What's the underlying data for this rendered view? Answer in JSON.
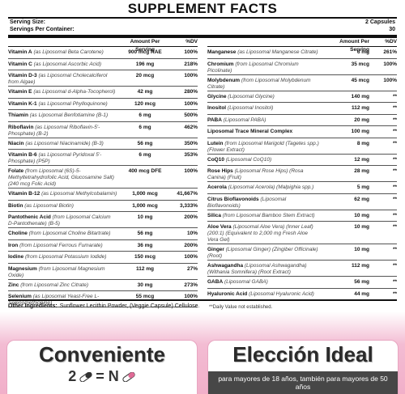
{
  "header": {
    "title": "SUPPLEMENT FACTS",
    "serving_size_label": "Serving Size:",
    "serving_size": "2 Capsules",
    "servings_label": "Servings Per Container:",
    "servings": "30"
  },
  "columns": {
    "amount": "Amount Per Serving",
    "dv": "%DV"
  },
  "left_rows": [
    {
      "name": "Vitamin A",
      "source": "(as Liposomal Beta Carotene)",
      "amount": "900 mcg RAE",
      "dv": "100%"
    },
    {
      "name": "Vitamin C",
      "source": "(as Liposomal Ascorbic Acid)",
      "amount": "196 mg",
      "dv": "218%"
    },
    {
      "name": "Vitamin D-3",
      "source": "(as Liposomal Cholecalciferol from Algae)",
      "amount": "20 mcg",
      "dv": "100%"
    },
    {
      "name": "Vitamin E",
      "source": "(as Liposomal d-Alpha-Tocopherol)",
      "amount": "42 mg",
      "dv": "280%"
    },
    {
      "name": "Vitamin K-1",
      "source": "(as Liposomal Phylloquinone)",
      "amount": "120 mcg",
      "dv": "100%"
    },
    {
      "name": "Thiamin",
      "source": "(as Liposomal Benfotiamine (B-1)",
      "amount": "6 mg",
      "dv": "500%"
    },
    {
      "name": "Riboflavin",
      "source": "(as Liposomal Riboflavin-5'-Phosphate) (B-2)",
      "amount": "6 mg",
      "dv": "462%"
    },
    {
      "name": "Niacin",
      "source": "(as Liposomal Niacinamide) (B-3)",
      "amount": "56 mg",
      "dv": "350%"
    },
    {
      "name": "Vitamin B-6",
      "source": "(as Liposomal Pyridoxal 5'-Phosphate) (P5P)",
      "amount": "6 mg",
      "dv": "353%"
    },
    {
      "name": "Folate",
      "source": "(from Liposomal (6S)-5-Methyltetrahydrofolic Acid, Glucosamine Salt) (240 mcg Folic Acid)",
      "amount": "400 mcg DFE",
      "dv": "100%"
    },
    {
      "name": "Vitamin B-12",
      "source": "(as Liposomal Methylcobalamin)",
      "amount": "1,000 mcg",
      "dv": "41,667%"
    },
    {
      "name": "Biotin",
      "source": "(as Liposomal Biotin)",
      "amount": "1,000 mcg",
      "dv": "3,333%"
    },
    {
      "name": "Pantothenic Acid",
      "source": "(from Liposomal Calcium D-Pantothenate) (B-5)",
      "amount": "10 mg",
      "dv": "200%"
    },
    {
      "name": "Choline",
      "source": "(from Liposomal Choline Bitartrate)",
      "amount": "56 mg",
      "dv": "10%"
    },
    {
      "name": "Iron",
      "source": "(from Liposomal Ferrous Fumarate)",
      "amount": "36 mg",
      "dv": "200%"
    },
    {
      "name": "Iodine",
      "source": "(from Liposomal Potassium Iodide)",
      "amount": "150 mcg",
      "dv": "100%"
    },
    {
      "name": "Magnesium",
      "source": "(from Liposomal Magnesium Oxide)",
      "amount": "112 mg",
      "dv": "27%"
    },
    {
      "name": "Zinc",
      "source": "(from Liposomal Zinc Citrate)",
      "amount": "30 mg",
      "dv": "273%"
    },
    {
      "name": "Selenium",
      "source": "(as Liposomal Yeast-Free L-Selenomethionine)",
      "amount": "55 mcg",
      "dv": "100%"
    }
  ],
  "right_rows": [
    {
      "name": "Manganese",
      "source": "(as Liposomal Manganese Citrate)",
      "amount": "6 mg",
      "dv": "261%"
    },
    {
      "name": "Chromium",
      "source": "(from Liposomal Chromium Picolinate)",
      "amount": "35 mcg",
      "dv": "100%"
    },
    {
      "name": "Molybdenum",
      "source": "(from Liposomal Molybdenum Citrate)",
      "amount": "45 mcg",
      "dv": "100%"
    },
    {
      "name": "Glycine",
      "source": "(Liposomal Glycine)",
      "amount": "140 mg",
      "dv": "**"
    },
    {
      "name": "Inositol",
      "source": "(Liposomal Inositol)",
      "amount": "112 mg",
      "dv": "**"
    },
    {
      "name": "PABA",
      "source": "(Liposomal PABA)",
      "amount": "20 mg",
      "dv": "**"
    },
    {
      "name": "Liposomal Trace Mineral Complex",
      "amount": "100 mg",
      "dv": "**"
    },
    {
      "name": "Lutein",
      "source": "(from Liposomal Marigold (Tagetes spp.) (Flower Extract)",
      "amount": "8 mg",
      "dv": "**"
    },
    {
      "name": "CoQ10",
      "source": "(Liposomal CoQ10)",
      "amount": "12 mg",
      "dv": "**"
    },
    {
      "name": "Rose Hips",
      "source": "(Liposomal Rose Hips) (Rosa Canina) (Fruit)",
      "amount": "28 mg",
      "dv": "**"
    },
    {
      "name": "Acerola",
      "source": "(Liposomal Acerola) (Malpighia spp.)",
      "amount": "5 mg",
      "dv": "**"
    },
    {
      "name": "Citrus Bioflavonoids",
      "source": "(Liposomal Bioflavonoids)",
      "amount": "62 mg",
      "dv": "**"
    },
    {
      "name": "Silica",
      "source": "(from Liposomal Bamboo Stem Extract)",
      "amount": "10 mg",
      "dv": "**"
    },
    {
      "name": "Aloe Vera",
      "source": "(Liposomal Aloe Vera) (Inner Leaf) (200:1) (Equivalent to 2,000 mg Fresh Aloe Vera Gel)",
      "amount": "10 mg",
      "dv": "**"
    },
    {
      "name": "Ginger",
      "source": "(Liposomal Ginger) (Zingiber Officinale) (Root)",
      "amount": "10 mg",
      "dv": "**"
    },
    {
      "name": "Ashwagandha",
      "source": "(Liposomal Ashwagandha) (Withania Somnifera) (Root Extract)",
      "amount": "112 mg",
      "dv": "**"
    },
    {
      "name": "GABA",
      "source": "(Liposomal GABA)",
      "amount": "56 mg",
      "dv": "**"
    },
    {
      "name": "Hyaluronic Acid",
      "source": "(Liposomal Hyaluronic Acid)",
      "amount": "44 mg",
      "dv": "**"
    }
  ],
  "footnote": "**Daily Value not established.",
  "other_ingredients": {
    "label": "Other Ingredients:",
    "text": "Sunflower Lecithin Powder, (Veggie Capsule) Cellulose."
  },
  "banners": [
    {
      "title": "Conveniente",
      "formula_left": "2",
      "formula_right": "= N"
    },
    {
      "title": "Elección Ideal",
      "subtitle": "para mayores de 18 años, también para mayores de 50 años"
    }
  ]
}
